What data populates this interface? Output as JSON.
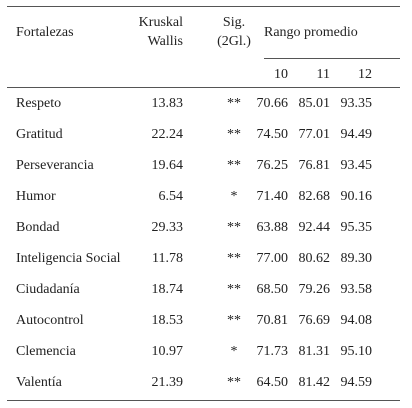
{
  "header": {
    "col_fortalezas": "Fortalezas",
    "col_kw_line1": "Kruskal",
    "col_kw_line2": "Wallis",
    "col_sig_line1": "Sig.",
    "col_sig_line2": "(2Gl.)",
    "col_rango": "Rango promedio",
    "sub_10": "10",
    "sub_11": "11",
    "sub_12": "12"
  },
  "rows": [
    {
      "name": "Respeto",
      "kw": "13.83",
      "sig": "**",
      "r10": "70.66",
      "r11": "85.01",
      "r12": "93.35"
    },
    {
      "name": "Gratitud",
      "kw": "22.24",
      "sig": "**",
      "r10": "74.50",
      "r11": "77.01",
      "r12": "94.49"
    },
    {
      "name": "Perseverancia",
      "kw": "19.64",
      "sig": "**",
      "r10": "76.25",
      "r11": "76.81",
      "r12": "93.45"
    },
    {
      "name": "Humor",
      "kw": "6.54",
      "sig": "*",
      "r10": "71.40",
      "r11": "82.68",
      "r12": "90.16"
    },
    {
      "name": "Bondad",
      "kw": "29.33",
      "sig": "**",
      "r10": "63.88",
      "r11": "92.44",
      "r12": "95.35"
    },
    {
      "name": "Inteligencia Social",
      "kw": "11.78",
      "sig": "**",
      "r10": "77.00",
      "r11": "80.62",
      "r12": "89.30"
    },
    {
      "name": "Ciudadanía",
      "kw": "18.74",
      "sig": "**",
      "r10": "68.50",
      "r11": "79.26",
      "r12": "93.58"
    },
    {
      "name": "Autocontrol",
      "kw": "18.53",
      "sig": "**",
      "r10": "70.81",
      "r11": "76.69",
      "r12": "94.08"
    },
    {
      "name": "Clemencia",
      "kw": "10.97",
      "sig": "*",
      "r10": "71.73",
      "r11": "81.31",
      "r12": "95.10"
    },
    {
      "name": "Valentía",
      "kw": "21.39",
      "sig": "**",
      "r10": "64.50",
      "r11": "81.42",
      "r12": "94.59"
    }
  ]
}
